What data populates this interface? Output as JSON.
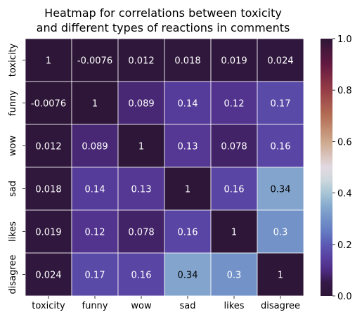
{
  "chart_data": {
    "type": "heatmap",
    "title_lines": [
      "Heatmap for correlations between toxicity",
      "and different types of reactions in comments"
    ],
    "x_labels": [
      "toxicity",
      "funny",
      "wow",
      "sad",
      "likes",
      "disagree"
    ],
    "y_labels": [
      "toxicity",
      "funny",
      "wow",
      "sad",
      "likes",
      "disagree"
    ],
    "matrix": [
      [
        1,
        -0.0076,
        0.012,
        0.018,
        0.019,
        0.024
      ],
      [
        -0.0076,
        1,
        0.089,
        0.14,
        0.12,
        0.17
      ],
      [
        0.012,
        0.089,
        1,
        0.13,
        0.078,
        0.16
      ],
      [
        0.018,
        0.14,
        0.13,
        1,
        0.16,
        0.34
      ],
      [
        0.019,
        0.12,
        0.078,
        0.16,
        1,
        0.3
      ],
      [
        0.024,
        0.17,
        0.16,
        0.34,
        0.3,
        1
      ]
    ],
    "cell_labels": [
      [
        "1",
        "-0.0076",
        "0.012",
        "0.018",
        "0.019",
        "0.024"
      ],
      [
        "-0.0076",
        "1",
        "0.089",
        "0.14",
        "0.12",
        "0.17"
      ],
      [
        "0.012",
        "0.089",
        "1",
        "0.13",
        "0.078",
        "0.16"
      ],
      [
        "0.018",
        "0.14",
        "0.13",
        "1",
        "0.16",
        "0.34"
      ],
      [
        "0.019",
        "0.12",
        "0.078",
        "0.16",
        "1",
        "0.3"
      ],
      [
        "0.024",
        "0.17",
        "0.16",
        "0.34",
        "0.3",
        "1"
      ]
    ],
    "colorbar": {
      "range": [
        0.0,
        1.0
      ],
      "ticks": [
        0.0,
        0.2,
        0.4,
        0.6,
        0.8,
        1.0
      ],
      "tick_labels": [
        "0.0",
        "0.2",
        "0.4",
        "0.6",
        "0.8",
        "1.0"
      ]
    },
    "colormap": "twilight_shifted",
    "grid": true
  }
}
